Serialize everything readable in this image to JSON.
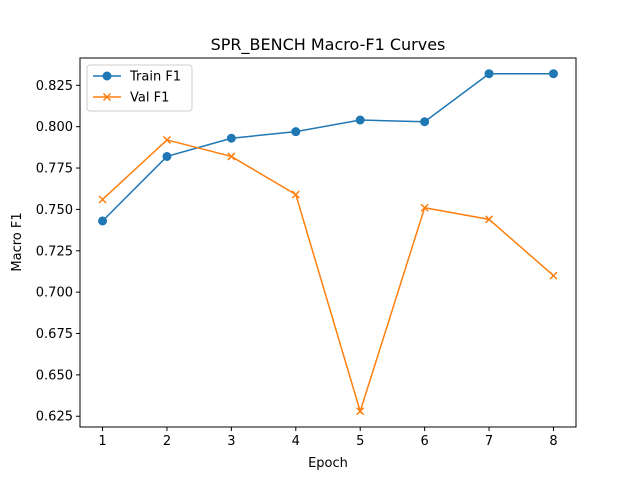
{
  "chart_data": {
    "type": "line",
    "title": "SPR_BENCH Macro-F1 Curves",
    "xlabel": "Epoch",
    "ylabel": "Macro F1",
    "x": [
      1,
      2,
      3,
      4,
      5,
      6,
      7,
      8
    ],
    "xlim": [
      0.65,
      8.35
    ],
    "ylim": [
      0.6185,
      0.8415
    ],
    "xticks": [
      1,
      2,
      3,
      4,
      5,
      6,
      7,
      8
    ],
    "yticks": [
      0.625,
      0.65,
      0.675,
      0.7,
      0.725,
      0.75,
      0.775,
      0.8,
      0.825
    ],
    "ytick_labels": [
      "0.625",
      "0.650",
      "0.675",
      "0.700",
      "0.725",
      "0.750",
      "0.775",
      "0.800",
      "0.825"
    ],
    "grid": false,
    "legend_position": "upper left",
    "series": [
      {
        "name": "Train F1",
        "color": "#1f77b4",
        "marker": "circle",
        "values": [
          0.743,
          0.782,
          0.793,
          0.797,
          0.804,
          0.803,
          0.832,
          0.832
        ]
      },
      {
        "name": "Val F1",
        "color": "#ff7f0e",
        "marker": "x",
        "values": [
          0.756,
          0.792,
          0.782,
          0.759,
          0.628,
          0.751,
          0.744,
          0.71
        ]
      }
    ]
  }
}
